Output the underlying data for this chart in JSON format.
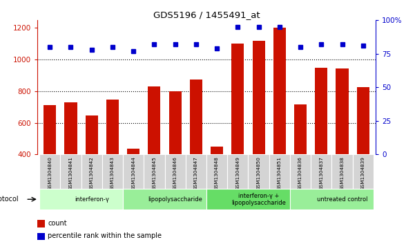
{
  "title": "GDS5196 / 1455491_at",
  "samples": [
    "GSM1304840",
    "GSM1304841",
    "GSM1304842",
    "GSM1304843",
    "GSM1304844",
    "GSM1304845",
    "GSM1304846",
    "GSM1304847",
    "GSM1304848",
    "GSM1304849",
    "GSM1304850",
    "GSM1304851",
    "GSM1304836",
    "GSM1304837",
    "GSM1304838",
    "GSM1304839"
  ],
  "counts": [
    710,
    730,
    645,
    745,
    435,
    830,
    800,
    875,
    450,
    1100,
    1120,
    1200,
    715,
    950,
    945,
    825
  ],
  "percentiles": [
    80,
    80,
    78,
    80,
    77,
    82,
    82,
    82,
    79,
    95,
    95,
    95,
    80,
    82,
    82,
    81
  ],
  "groups": [
    {
      "label": "interferon-γ",
      "start": 0,
      "end": 4,
      "color": "#ccffcc"
    },
    {
      "label": "lipopolysaccharide",
      "start": 4,
      "end": 8,
      "color": "#99ee99"
    },
    {
      "label": "interferon-γ +\nlipopolysaccharide",
      "start": 8,
      "end": 12,
      "color": "#66dd66"
    },
    {
      "label": "untreated control",
      "start": 12,
      "end": 16,
      "color": "#99ee99"
    }
  ],
  "ylim_left": [
    400,
    1250
  ],
  "ylim_right": [
    0,
    100
  ],
  "left_ticks": [
    400,
    600,
    800,
    1000,
    1200
  ],
  "right_ticks": [
    0,
    25,
    50,
    75,
    100
  ],
  "right_tick_labels": [
    "0",
    "25",
    "50",
    "75",
    "100%"
  ],
  "bar_color": "#cc1100",
  "dot_color": "#0000cc",
  "grid_values": [
    600,
    800,
    1000
  ],
  "protocol_label": "protocol",
  "legend_count": "count",
  "legend_percentile": "percentile rank within the sample",
  "group_colors": [
    "#ccffcc",
    "#99ee99",
    "#66dd66",
    "#99ee99"
  ]
}
